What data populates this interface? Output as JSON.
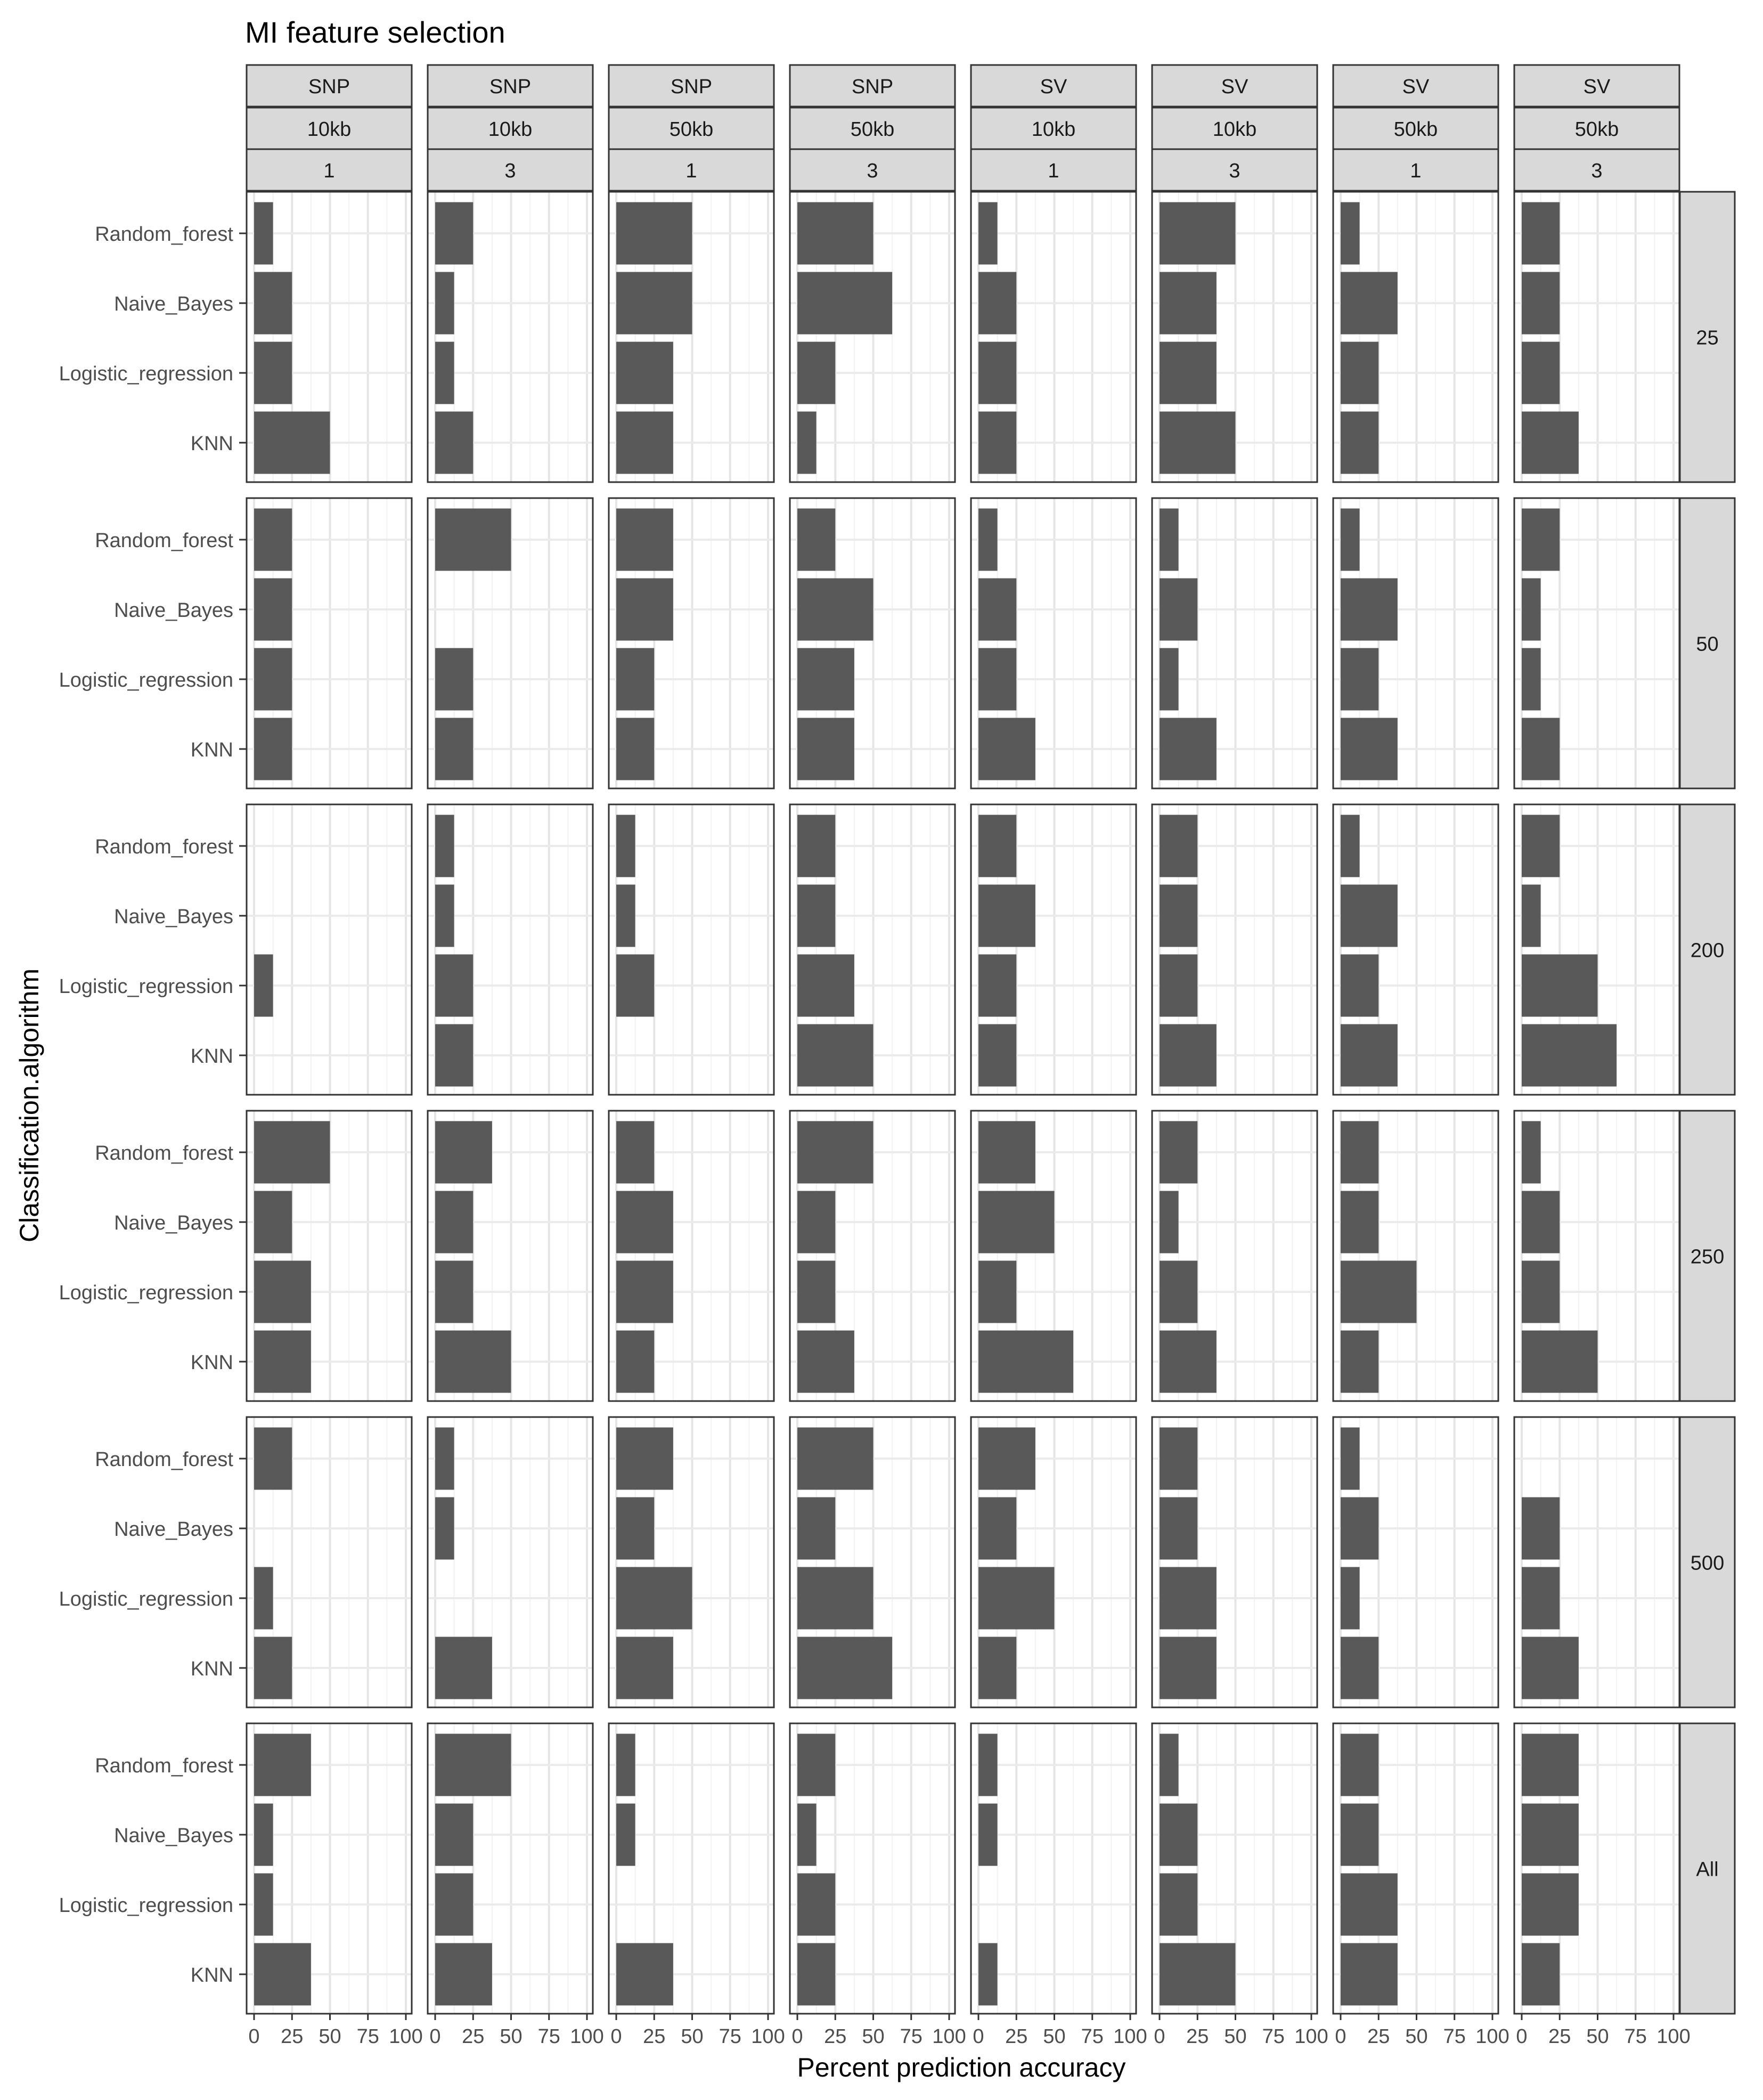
{
  "chart_data": {
    "type": "bar",
    "orientation": "horizontal",
    "title": "MI feature selection",
    "xlabel": "Percent prediction accuracy",
    "ylabel": "Classification.algorithm",
    "xlim": [
      0,
      100
    ],
    "x_ticks": [
      0,
      25,
      50,
      75,
      100
    ],
    "grid": true,
    "categories": [
      "Random_forest",
      "Naive_Bayes",
      "Logistic_regression",
      "KNN"
    ],
    "facet_columns": [
      {
        "variant": "SNP",
        "window": "10kb",
        "k": "1"
      },
      {
        "variant": "SNP",
        "window": "10kb",
        "k": "3"
      },
      {
        "variant": "SNP",
        "window": "50kb",
        "k": "1"
      },
      {
        "variant": "SNP",
        "window": "50kb",
        "k": "3"
      },
      {
        "variant": "SV",
        "window": "10kb",
        "k": "1"
      },
      {
        "variant": "SV",
        "window": "10kb",
        "k": "3"
      },
      {
        "variant": "SV",
        "window": "50kb",
        "k": "1"
      },
      {
        "variant": "SV",
        "window": "50kb",
        "k": "3"
      }
    ],
    "facet_rows": [
      {
        "label": "25",
        "panels": [
          [
            12.5,
            25,
            25,
            50
          ],
          [
            25,
            12.5,
            12.5,
            25
          ],
          [
            50,
            50,
            37.5,
            37.5
          ],
          [
            50,
            62.5,
            25,
            12.5
          ],
          [
            12.5,
            25,
            25,
            25
          ],
          [
            50,
            37.5,
            37.5,
            50
          ],
          [
            12.5,
            37.5,
            25,
            25
          ],
          [
            25,
            25,
            25,
            37.5
          ]
        ]
      },
      {
        "label": "50",
        "panels": [
          [
            25,
            25,
            25,
            25
          ],
          [
            50,
            0,
            25,
            25
          ],
          [
            37.5,
            37.5,
            25,
            25
          ],
          [
            25,
            50,
            37.5,
            37.5
          ],
          [
            12.5,
            25,
            25,
            37.5
          ],
          [
            12.5,
            25,
            12.5,
            37.5
          ],
          [
            12.5,
            37.5,
            25,
            37.5
          ],
          [
            25,
            12.5,
            12.5,
            25
          ]
        ]
      },
      {
        "label": "200",
        "panels": [
          [
            0,
            0,
            12.5,
            0
          ],
          [
            12.5,
            12.5,
            25,
            25
          ],
          [
            12.5,
            12.5,
            25,
            0
          ],
          [
            25,
            25,
            37.5,
            50
          ],
          [
            25,
            37.5,
            25,
            25
          ],
          [
            25,
            25,
            25,
            37.5
          ],
          [
            12.5,
            37.5,
            25,
            37.5
          ],
          [
            25,
            12.5,
            50,
            62.5
          ]
        ]
      },
      {
        "label": "250",
        "panels": [
          [
            50,
            25,
            37.5,
            37.5
          ],
          [
            37.5,
            25,
            25,
            50
          ],
          [
            25,
            37.5,
            37.5,
            25
          ],
          [
            50,
            25,
            25,
            37.5
          ],
          [
            37.5,
            50,
            25,
            62.5
          ],
          [
            25,
            12.5,
            25,
            37.5
          ],
          [
            25,
            25,
            50,
            25
          ],
          [
            12.5,
            25,
            25,
            50
          ]
        ]
      },
      {
        "label": "500",
        "panels": [
          [
            25,
            0,
            12.5,
            25
          ],
          [
            12.5,
            12.5,
            0,
            37.5
          ],
          [
            37.5,
            25,
            50,
            37.5
          ],
          [
            50,
            25,
            50,
            62.5
          ],
          [
            37.5,
            25,
            50,
            25
          ],
          [
            25,
            25,
            37.5,
            37.5
          ],
          [
            12.5,
            25,
            12.5,
            25
          ],
          [
            0,
            25,
            25,
            37.5
          ]
        ]
      },
      {
        "label": "All",
        "panels": [
          [
            37.5,
            12.5,
            12.5,
            37.5
          ],
          [
            50,
            25,
            25,
            37.5
          ],
          [
            12.5,
            12.5,
            0,
            37.5
          ],
          [
            25,
            12.5,
            25,
            25
          ],
          [
            12.5,
            12.5,
            0,
            12.5
          ],
          [
            12.5,
            25,
            25,
            50
          ],
          [
            25,
            25,
            37.5,
            37.5
          ],
          [
            37.5,
            37.5,
            37.5,
            25
          ]
        ]
      }
    ]
  }
}
